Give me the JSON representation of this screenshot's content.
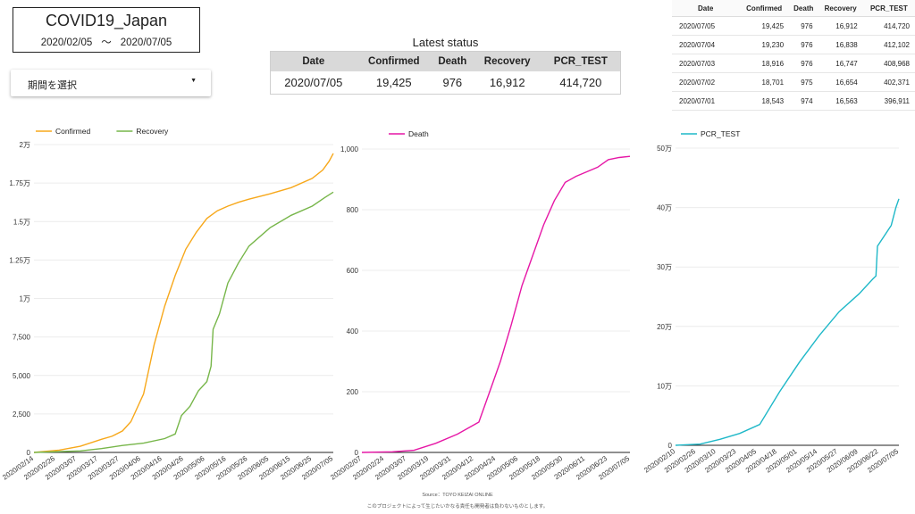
{
  "header": {
    "title": "COVID19_Japan",
    "start_date": "2020/02/05",
    "separator": "〜",
    "end_date": "2020/07/05"
  },
  "date_selector": {
    "label": "期間を選択",
    "arrow": "▼"
  },
  "latest_status": {
    "title": "Latest status",
    "columns": [
      "Date",
      "Confirmed",
      "Death",
      "Recovery",
      "PCR_TEST"
    ],
    "row": [
      "2020/07/05",
      "19,425",
      "976",
      "16,912",
      "414,720"
    ]
  },
  "recent_table": {
    "columns": [
      "Date",
      "Confirmed",
      "Death",
      "Recovery",
      "PCR_TEST"
    ],
    "rows": [
      [
        "2020/07/05",
        "19,425",
        "976",
        "16,912",
        "414,720"
      ],
      [
        "2020/07/04",
        "19,230",
        "976",
        "16,838",
        "412,102"
      ],
      [
        "2020/07/03",
        "18,916",
        "976",
        "16,747",
        "408,968"
      ],
      [
        "2020/07/02",
        "18,701",
        "975",
        "16,654",
        "402,371"
      ],
      [
        "2020/07/01",
        "18,543",
        "974",
        "16,563",
        "396,911"
      ]
    ]
  },
  "footer": {
    "source": "Source：TOYO KEIZAI ONLINE",
    "disclaimer": "このプロジェクトによって生じたいかなる責任も開発者は負わないものとします。"
  },
  "colors": {
    "confirmed": "#f7a81b",
    "recovery": "#77b64a",
    "death": "#e617a6",
    "pcr": "#1fb8c8"
  },
  "chart_data": [
    {
      "type": "line",
      "title": "",
      "legend": "top-left",
      "ylim": [
        0,
        20000
      ],
      "y_ticks": [
        0,
        2500,
        5000,
        7500,
        10000,
        12500,
        15000,
        17500,
        20000
      ],
      "y_tick_labels": [
        "0",
        "2,500",
        "5,000",
        "7,500",
        "1万",
        "1.25万",
        "1.5万",
        "1.75万",
        "2万"
      ],
      "x_tick_labels": [
        "2020/02/14",
        "2020/02/26",
        "2020/03/07",
        "2020/03/17",
        "2020/03/27",
        "2020/04/06",
        "2020/04/16",
        "2020/04/26",
        "2020/05/06",
        "2020/05/16",
        "2020/05/26",
        "2020/06/05",
        "2020/06/15",
        "2020/06/25",
        "2020/07/05"
      ],
      "x_range": [
        "2020/02/14",
        "2020/07/05"
      ],
      "series": [
        {
          "name": "Confirmed",
          "color": "#f7a81b",
          "points": [
            [
              "2020/02/14",
              0
            ],
            [
              "2020/02/26",
              150
            ],
            [
              "2020/03/07",
              400
            ],
            [
              "2020/03/17",
              850
            ],
            [
              "2020/03/22",
              1050
            ],
            [
              "2020/03/27",
              1400
            ],
            [
              "2020/03/31",
              2000
            ],
            [
              "2020/04/06",
              3800
            ],
            [
              "2020/04/11",
              7000
            ],
            [
              "2020/04/16",
              9500
            ],
            [
              "2020/04/21",
              11500
            ],
            [
              "2020/04/26",
              13200
            ],
            [
              "2020/05/01",
              14300
            ],
            [
              "2020/05/06",
              15200
            ],
            [
              "2020/05/11",
              15700
            ],
            [
              "2020/05/16",
              16000
            ],
            [
              "2020/05/21",
              16250
            ],
            [
              "2020/05/26",
              16450
            ],
            [
              "2020/06/05",
              16800
            ],
            [
              "2020/06/15",
              17200
            ],
            [
              "2020/06/25",
              17800
            ],
            [
              "2020/06/30",
              18350
            ],
            [
              "2020/07/03",
              18916
            ],
            [
              "2020/07/05",
              19425
            ]
          ]
        },
        {
          "name": "Recovery",
          "color": "#77b64a",
          "points": [
            [
              "2020/02/14",
              0
            ],
            [
              "2020/03/07",
              100
            ],
            [
              "2020/03/17",
              250
            ],
            [
              "2020/03/27",
              450
            ],
            [
              "2020/04/06",
              600
            ],
            [
              "2020/04/16",
              900
            ],
            [
              "2020/04/21",
              1200
            ],
            [
              "2020/04/24",
              2400
            ],
            [
              "2020/04/28",
              3000
            ],
            [
              "2020/05/02",
              4000
            ],
            [
              "2020/05/06",
              4600
            ],
            [
              "2020/05/08",
              5600
            ],
            [
              "2020/05/09",
              8000
            ],
            [
              "2020/05/12",
              9000
            ],
            [
              "2020/05/16",
              11000
            ],
            [
              "2020/05/21",
              12300
            ],
            [
              "2020/05/26",
              13400
            ],
            [
              "2020/06/05",
              14600
            ],
            [
              "2020/06/15",
              15400
            ],
            [
              "2020/06/25",
              16000
            ],
            [
              "2020/07/01",
              16563
            ],
            [
              "2020/07/05",
              16912
            ]
          ]
        }
      ]
    },
    {
      "type": "line",
      "title": "",
      "legend": "top-left",
      "ylim": [
        0,
        1000
      ],
      "y_ticks": [
        0,
        200,
        400,
        600,
        800,
        1000
      ],
      "y_tick_labels": [
        "0",
        "200",
        "400",
        "600",
        "800",
        "1,000"
      ],
      "x_tick_labels": [
        "2020/02/07",
        "2020/02/24",
        "2020/03/07",
        "2020/03/19",
        "2020/03/31",
        "2020/04/12",
        "2020/04/24",
        "2020/05/06",
        "2020/05/18",
        "2020/05/30",
        "2020/06/11",
        "2020/06/23",
        "2020/07/05"
      ],
      "x_range": [
        "2020/02/07",
        "2020/07/05"
      ],
      "series": [
        {
          "name": "Death",
          "color": "#e617a6",
          "points": [
            [
              "2020/02/07",
              0
            ],
            [
              "2020/02/24",
              2
            ],
            [
              "2020/03/07",
              7
            ],
            [
              "2020/03/19",
              30
            ],
            [
              "2020/03/31",
              60
            ],
            [
              "2020/04/12",
              100
            ],
            [
              "2020/04/18",
              200
            ],
            [
              "2020/04/24",
              300
            ],
            [
              "2020/04/30",
              420
            ],
            [
              "2020/05/06",
              550
            ],
            [
              "2020/05/12",
              650
            ],
            [
              "2020/05/18",
              750
            ],
            [
              "2020/05/24",
              830
            ],
            [
              "2020/05/30",
              890
            ],
            [
              "2020/06/05",
              910
            ],
            [
              "2020/06/11",
              925
            ],
            [
              "2020/06/17",
              940
            ],
            [
              "2020/06/23",
              965
            ],
            [
              "2020/06/29",
              972
            ],
            [
              "2020/07/05",
              976
            ]
          ]
        }
      ]
    },
    {
      "type": "line",
      "title": "",
      "legend": "top-left",
      "ylim": [
        0,
        500000
      ],
      "y_ticks": [
        0,
        100000,
        200000,
        300000,
        400000,
        500000
      ],
      "y_tick_labels": [
        "0",
        "10万",
        "20万",
        "30万",
        "40万",
        "50万"
      ],
      "x_tick_labels": [
        "2020/02/10",
        "2020/02/26",
        "2020/03/10",
        "2020/03/23",
        "2020/04/05",
        "2020/04/18",
        "2020/05/01",
        "2020/05/14",
        "2020/05/27",
        "2020/06/09",
        "2020/06/22",
        "2020/07/05"
      ],
      "x_range": [
        "2020/02/10",
        "2020/07/05"
      ],
      "series": [
        {
          "name": "PCR_TEST",
          "color": "#1fb8c8",
          "points": [
            [
              "2020/02/10",
              0
            ],
            [
              "2020/02/26",
              2000
            ],
            [
              "2020/03/10",
              10000
            ],
            [
              "2020/03/23",
              20000
            ],
            [
              "2020/04/05",
              35000
            ],
            [
              "2020/04/18",
              90000
            ],
            [
              "2020/05/01",
              140000
            ],
            [
              "2020/05/14",
              185000
            ],
            [
              "2020/05/27",
              225000
            ],
            [
              "2020/06/09",
              255000
            ],
            [
              "2020/06/18",
              280000
            ],
            [
              "2020/06/20",
              285000
            ],
            [
              "2020/06/21",
              335000
            ],
            [
              "2020/06/30",
              370000
            ],
            [
              "2020/07/03",
              400000
            ],
            [
              "2020/07/05",
              414720
            ]
          ]
        }
      ]
    }
  ]
}
